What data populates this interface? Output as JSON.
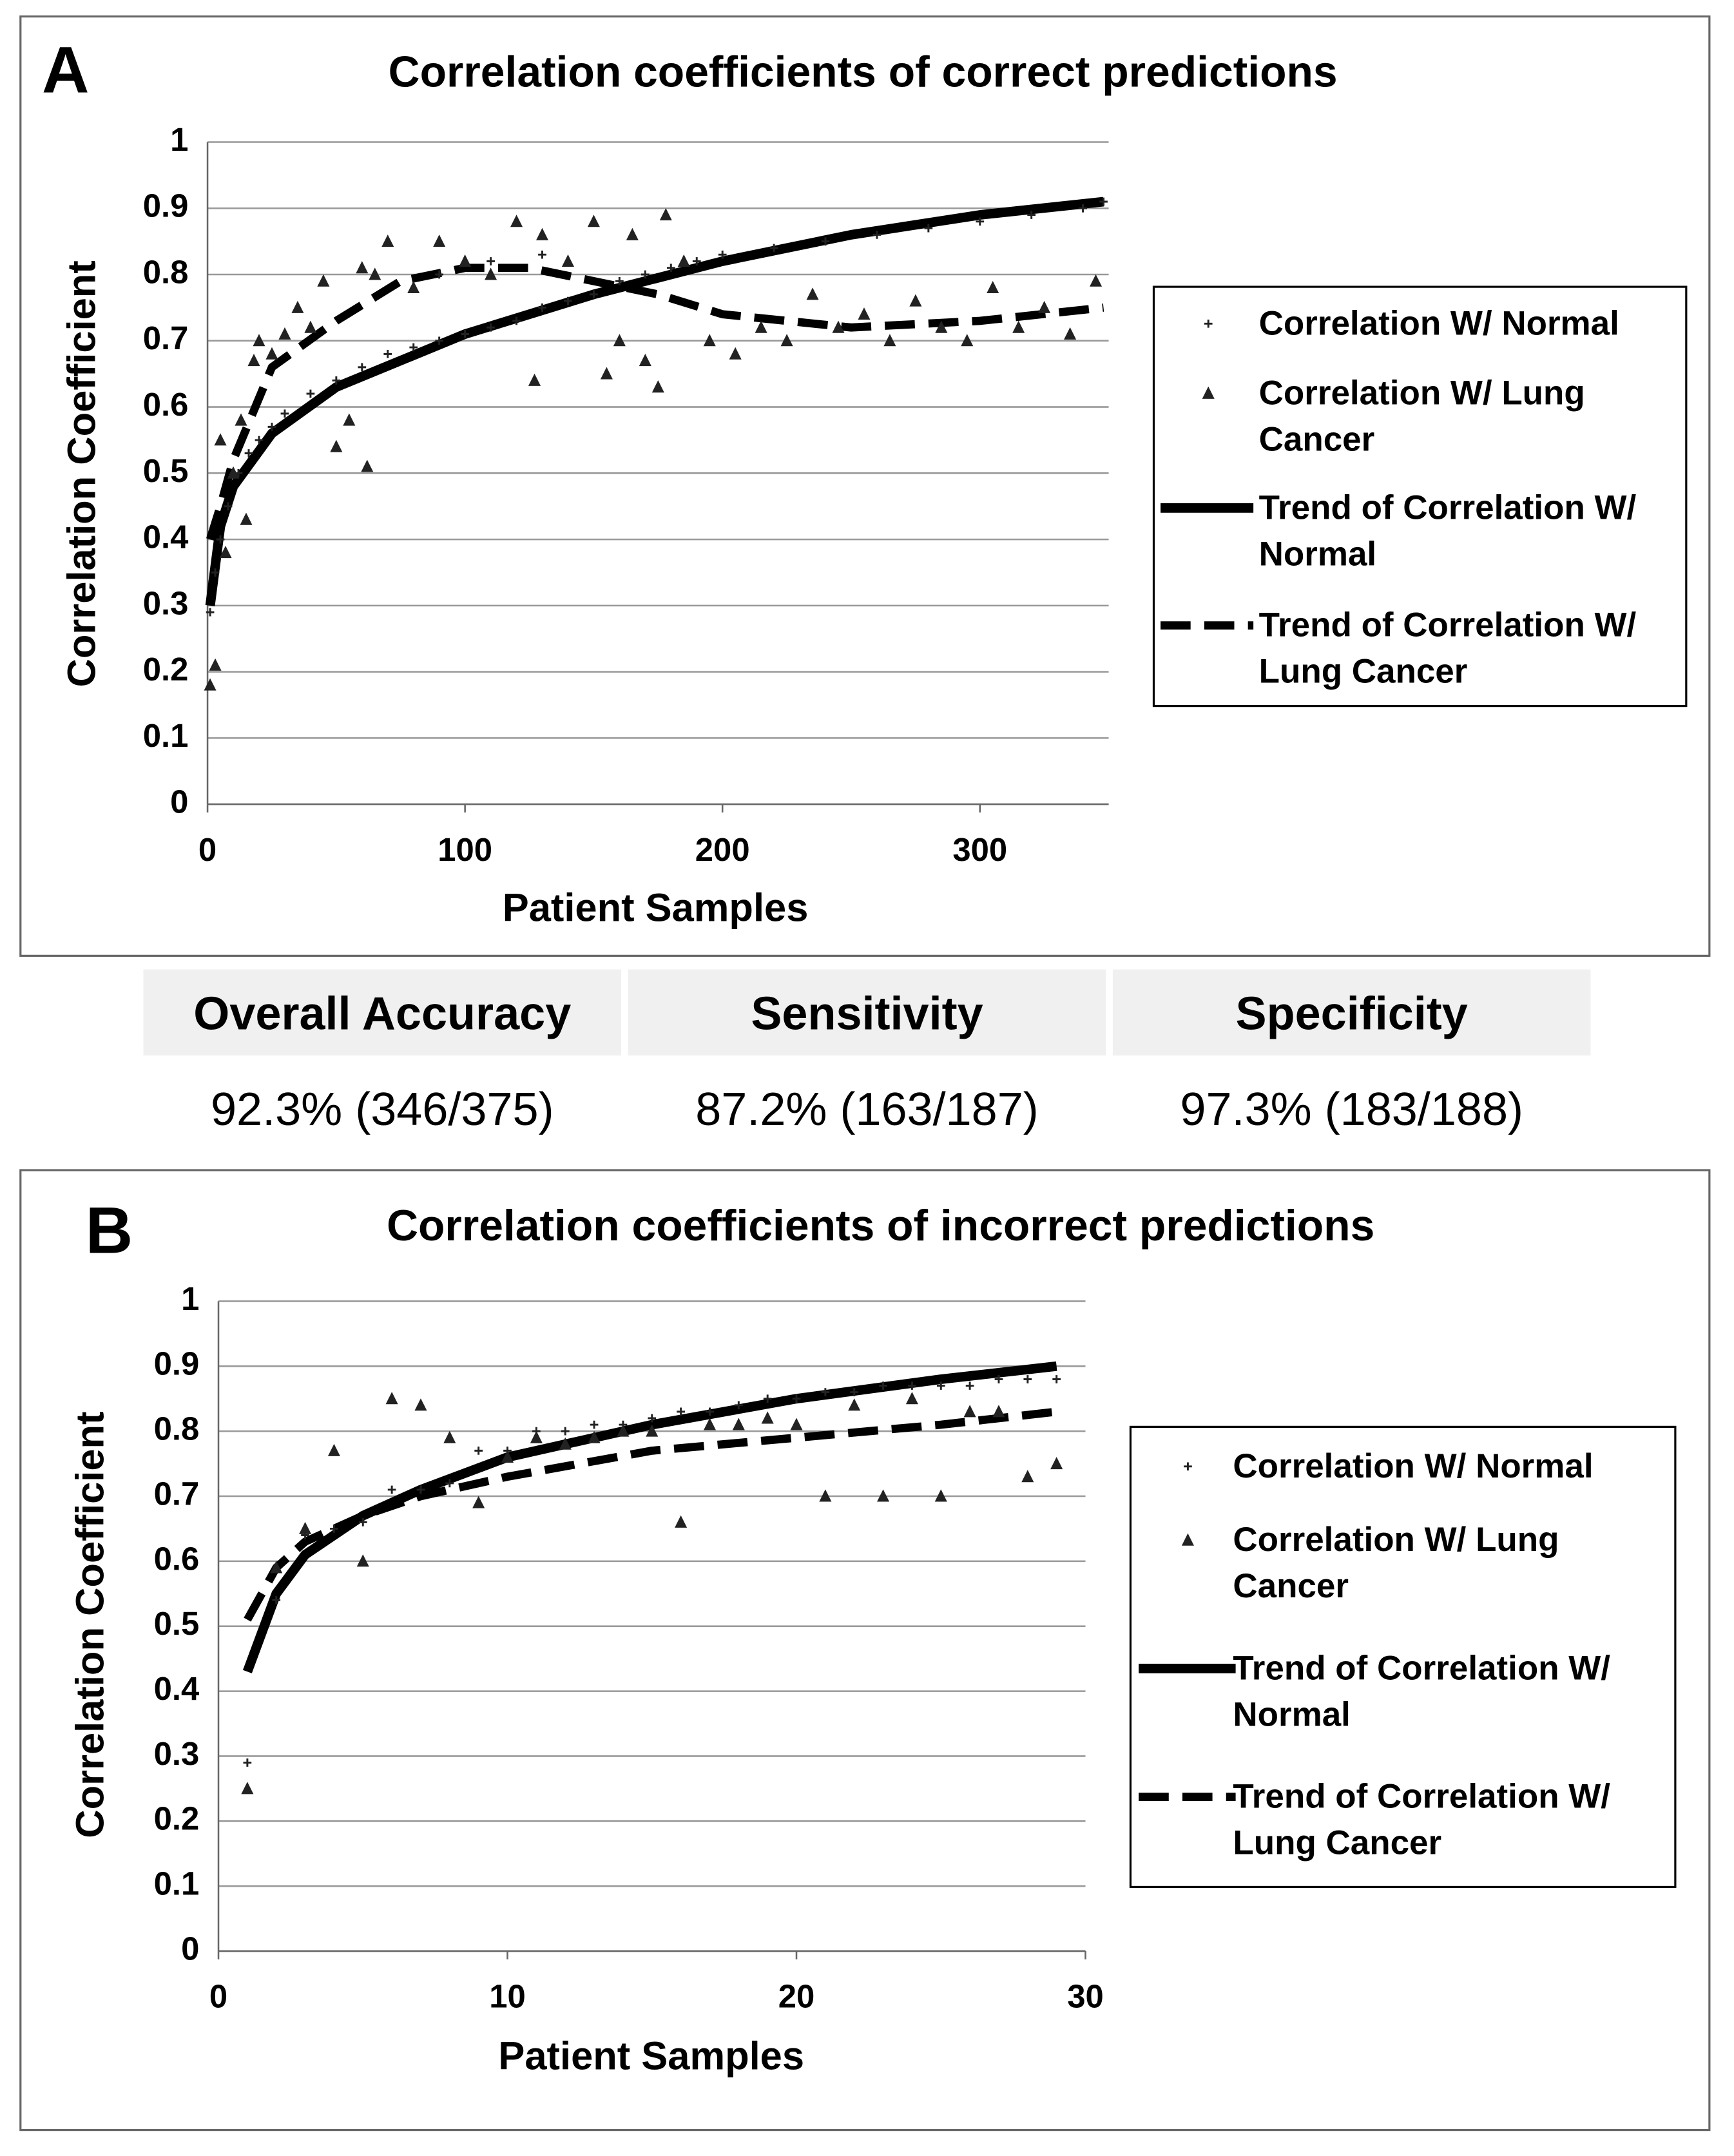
{
  "chart_data": [
    {
      "type": "scatter",
      "panel_label": "A",
      "title": "Correlation coefficients of correct predictions",
      "x_label": "Patient Samples",
      "y_label": "Correlation Coefficient",
      "xlim": [
        0,
        350
      ],
      "xticks": [
        0,
        100,
        200,
        300
      ],
      "ylim": [
        0,
        1
      ],
      "yticks": [
        0,
        0.1,
        0.2,
        0.3,
        0.4,
        0.5,
        0.6,
        0.7,
        0.8,
        0.9,
        1
      ],
      "grid": true,
      "series": [
        {
          "name": "Correlation W/ Normal",
          "marker": "plus",
          "color": "#222222",
          "x": [
            1,
            3,
            5,
            8,
            12,
            16,
            20,
            25,
            30,
            40,
            50,
            60,
            70,
            80,
            90,
            100,
            110,
            120,
            130,
            140,
            150,
            160,
            170,
            180,
            190,
            200,
            220,
            240,
            260,
            280,
            300,
            320,
            340,
            348,
            90,
            110,
            130
          ],
          "values": [
            0.29,
            0.35,
            0.4,
            0.45,
            0.5,
            0.53,
            0.55,
            0.57,
            0.59,
            0.62,
            0.64,
            0.66,
            0.68,
            0.69,
            0.7,
            0.71,
            0.72,
            0.73,
            0.75,
            0.76,
            0.77,
            0.79,
            0.8,
            0.81,
            0.82,
            0.83,
            0.84,
            0.85,
            0.86,
            0.87,
            0.88,
            0.89,
            0.9,
            0.91,
            0.8,
            0.82,
            0.83
          ]
        },
        {
          "name": "Correlation W/ Lung Cancer",
          "marker": "triangle",
          "color": "#222222",
          "x": [
            1,
            3,
            5,
            7,
            10,
            13,
            15,
            18,
            20,
            25,
            30,
            35,
            40,
            45,
            50,
            55,
            60,
            62,
            65,
            70,
            80,
            90,
            100,
            110,
            120,
            127,
            130,
            140,
            150,
            155,
            160,
            165,
            170,
            175,
            178,
            185,
            195,
            205,
            215,
            225,
            235,
            245,
            255,
            265,
            275,
            285,
            295,
            305,
            315,
            325,
            335,
            345
          ],
          "values": [
            0.18,
            0.21,
            0.55,
            0.38,
            0.5,
            0.58,
            0.43,
            0.67,
            0.7,
            0.68,
            0.71,
            0.75,
            0.72,
            0.79,
            0.54,
            0.58,
            0.81,
            0.51,
            0.8,
            0.85,
            0.78,
            0.85,
            0.82,
            0.8,
            0.88,
            0.64,
            0.86,
            0.82,
            0.88,
            0.65,
            0.7,
            0.86,
            0.67,
            0.63,
            0.89,
            0.82,
            0.7,
            0.68,
            0.72,
            0.7,
            0.77,
            0.72,
            0.74,
            0.7,
            0.76,
            0.72,
            0.7,
            0.78,
            0.72,
            0.75,
            0.71,
            0.79
          ]
        },
        {
          "name": "Trend of Correlation W/ Normal",
          "marker": "line",
          "color": "#000000",
          "x": [
            1,
            5,
            10,
            25,
            50,
            100,
            150,
            200,
            250,
            300,
            348
          ],
          "values": [
            0.3,
            0.42,
            0.48,
            0.56,
            0.63,
            0.71,
            0.77,
            0.82,
            0.86,
            0.89,
            0.91
          ]
        },
        {
          "name": "Trend of Correlation W/ Lung Cancer",
          "marker": "dashed-line",
          "color": "#000000",
          "x": [
            1,
            5,
            10,
            25,
            50,
            75,
            100,
            125,
            150,
            175,
            200,
            250,
            300,
            348
          ],
          "values": [
            0.4,
            0.45,
            0.52,
            0.66,
            0.73,
            0.79,
            0.81,
            0.81,
            0.79,
            0.77,
            0.74,
            0.72,
            0.73,
            0.75
          ]
        }
      ]
    },
    {
      "type": "scatter",
      "panel_label": "B",
      "title": "Correlation coefficients of incorrect predictions",
      "x_label": "Patient Samples",
      "y_label": "Correlation Coefficient",
      "xlim": [
        0,
        30
      ],
      "xticks": [
        0,
        10,
        20,
        30
      ],
      "ylim": [
        0,
        1
      ],
      "yticks": [
        0,
        0.1,
        0.2,
        0.3,
        0.4,
        0.5,
        0.6,
        0.7,
        0.8,
        0.9,
        1
      ],
      "grid": true,
      "series": [
        {
          "name": "Correlation W/ Normal",
          "marker": "plus",
          "color": "#222222",
          "x": [
            1,
            2,
            3,
            4,
            5,
            6,
            7,
            8,
            9,
            10,
            11,
            12,
            13,
            14,
            15,
            16,
            17,
            18,
            19,
            20,
            21,
            22,
            23,
            24,
            25,
            26,
            27,
            28,
            29
          ],
          "values": [
            0.29,
            0.54,
            0.64,
            0.65,
            0.66,
            0.71,
            0.71,
            0.72,
            0.77,
            0.77,
            0.8,
            0.8,
            0.81,
            0.81,
            0.82,
            0.83,
            0.83,
            0.84,
            0.85,
            0.85,
            0.86,
            0.86,
            0.87,
            0.87,
            0.87,
            0.87,
            0.88,
            0.88,
            0.88
          ]
        },
        {
          "name": "Correlation W/ Lung Cancer",
          "marker": "triangle",
          "color": "#222222",
          "x": [
            1,
            2,
            3,
            4,
            5,
            6,
            7,
            8,
            9,
            10,
            11,
            12,
            13,
            14,
            15,
            16,
            17,
            18,
            19,
            20,
            21,
            22,
            23,
            24,
            25,
            26,
            27,
            28,
            29
          ],
          "values": [
            0.25,
            0.59,
            0.65,
            0.77,
            0.6,
            0.85,
            0.84,
            0.79,
            0.69,
            0.76,
            0.79,
            0.78,
            0.79,
            0.8,
            0.8,
            0.66,
            0.81,
            0.81,
            0.82,
            0.81,
            0.7,
            0.84,
            0.7,
            0.85,
            0.7,
            0.83,
            0.83,
            0.73,
            0.75
          ]
        },
        {
          "name": "Trend of Correlation W/ Normal",
          "marker": "line",
          "color": "#000000",
          "x": [
            1,
            2,
            3,
            5,
            7,
            10,
            15,
            20,
            25,
            29
          ],
          "values": [
            0.43,
            0.55,
            0.61,
            0.67,
            0.71,
            0.76,
            0.81,
            0.85,
            0.88,
            0.9
          ]
        },
        {
          "name": "Trend of Correlation W/ Lung Cancer",
          "marker": "dashed-line",
          "color": "#000000",
          "x": [
            1,
            2,
            3,
            5,
            7,
            10,
            15,
            20,
            25,
            29
          ],
          "values": [
            0.51,
            0.59,
            0.63,
            0.67,
            0.7,
            0.73,
            0.77,
            0.79,
            0.81,
            0.83
          ]
        }
      ]
    }
  ],
  "table": {
    "header": [
      "Overall Accuracy",
      "Sensitivity",
      "Specificity"
    ],
    "rows": [
      [
        "92.3% (346/375)",
        "87.2% (163/187)",
        "97.3% (183/188)"
      ]
    ]
  }
}
